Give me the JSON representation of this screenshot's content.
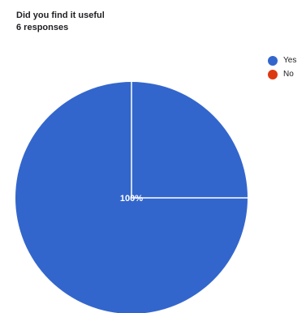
{
  "header": {
    "title": "Did you find it useful",
    "responses": "6 responses"
  },
  "chart_data": {
    "type": "pie",
    "title": "Did you find it useful",
    "subtitle": "6 responses",
    "slices": [
      {
        "label": "Yes",
        "value": 100,
        "color": "#3366cc"
      },
      {
        "label": "No",
        "value": 0,
        "color": "#dc3912"
      }
    ],
    "data_labels": [
      "100%"
    ],
    "legend_position": "right"
  }
}
